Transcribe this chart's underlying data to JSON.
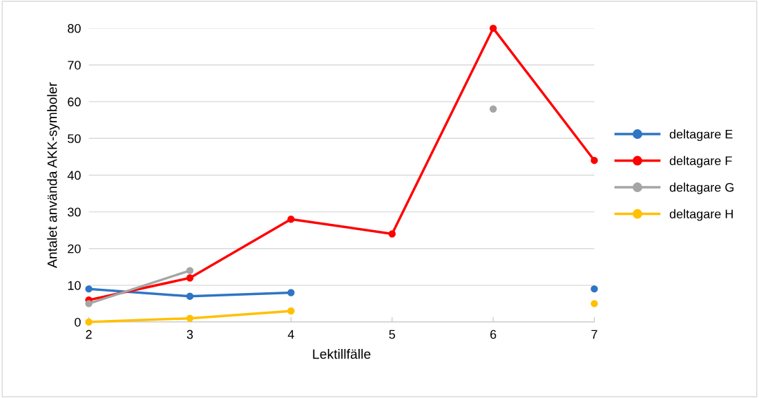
{
  "chart_data": {
    "type": "line",
    "xlabel": "Lektillfälle",
    "ylabel": "Antalet använda AKK-symboler",
    "categories": [
      "2",
      "3",
      "4",
      "5",
      "6",
      "7"
    ],
    "series": [
      {
        "name": "deltagare E",
        "color": "#2e75c4",
        "values": [
          9,
          7,
          8,
          null,
          null,
          9
        ]
      },
      {
        "name": "deltagare F",
        "color": "#ff0000",
        "values": [
          6,
          12,
          28,
          24,
          80,
          44
        ]
      },
      {
        "name": "deltagare G",
        "color": "#a5a5a5",
        "values": [
          5,
          14,
          null,
          null,
          58,
          null
        ]
      },
      {
        "name": "deltagare H",
        "color": "#ffc000",
        "values": [
          0,
          1,
          3,
          null,
          null,
          5
        ]
      }
    ],
    "ylim": [
      0,
      80
    ],
    "yticks": [
      0,
      10,
      20,
      30,
      40,
      50,
      60,
      70,
      80
    ],
    "grid": "y",
    "legend": "right",
    "marker": "circle",
    "line_style": "solid"
  }
}
